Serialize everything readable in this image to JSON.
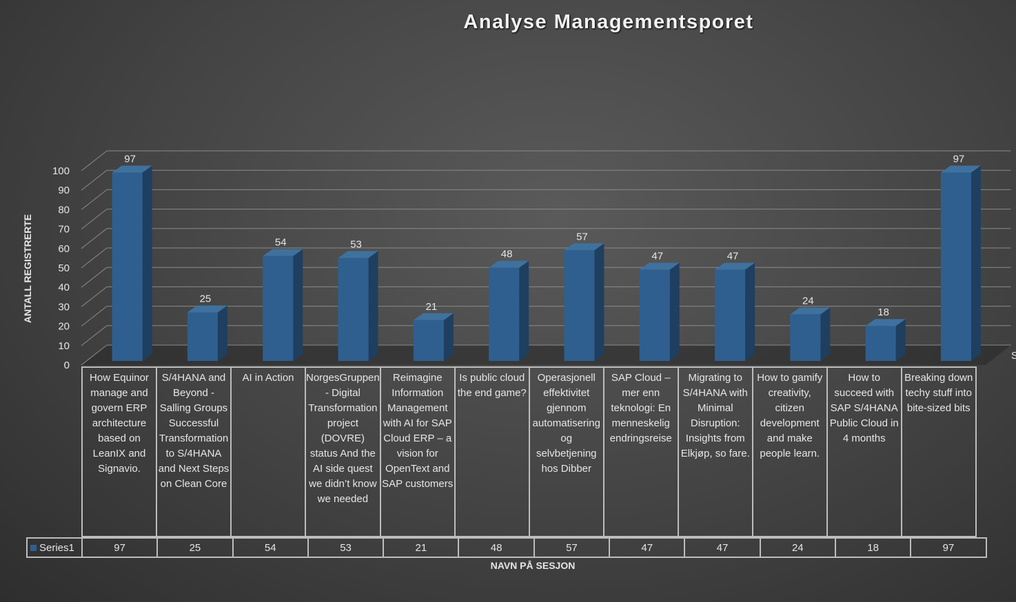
{
  "chart_data": {
    "type": "bar",
    "title": "Analyse Managementsporet",
    "xlabel": "NAVN PÅ SESJON",
    "ylabel": "ANTALL REGISTRERTE",
    "ylim": [
      0,
      100
    ],
    "yticks": [
      0,
      10,
      20,
      30,
      40,
      50,
      60,
      70,
      80,
      90,
      100
    ],
    "grid": true,
    "bar_color": "#2f5f8f",
    "categories": [
      "How Equinor manage and govern ERP architecture based on LeanIX and Signavio.",
      "S/4HANA and Beyond - Salling Groups Successful Transformation to S/4HANA and Next Steps on Clean Core",
      "AI in Action",
      "NorgesGruppen - Digital Transformation project (DOVRE) status And the AI side quest we didn’t know we needed",
      "Reimagine Information Management with AI for SAP Cloud ERP – a vision for OpenText and SAP customers",
      "Is public cloud the end game?",
      "Operasjonell effektivitet gjennom automatisering og selvbetjening hos Dibber",
      "SAP Cloud – mer enn teknologi: En menneskelig endringsreise",
      "Migrating to S/4HANA with Minimal Disruption: Insights from Elkjøp, so fare.",
      "How to gamify creativity, citizen development and make people learn.",
      "How to succeed with SAP S/4HANA Public Cloud in 4 months",
      "Breaking down techy stuff into bite-sized bits"
    ],
    "series": [
      {
        "name": "Series1",
        "values": [
          97,
          25,
          54,
          53,
          21,
          48,
          57,
          47,
          47,
          24,
          18,
          97
        ]
      }
    ],
    "cut_label": "S"
  }
}
